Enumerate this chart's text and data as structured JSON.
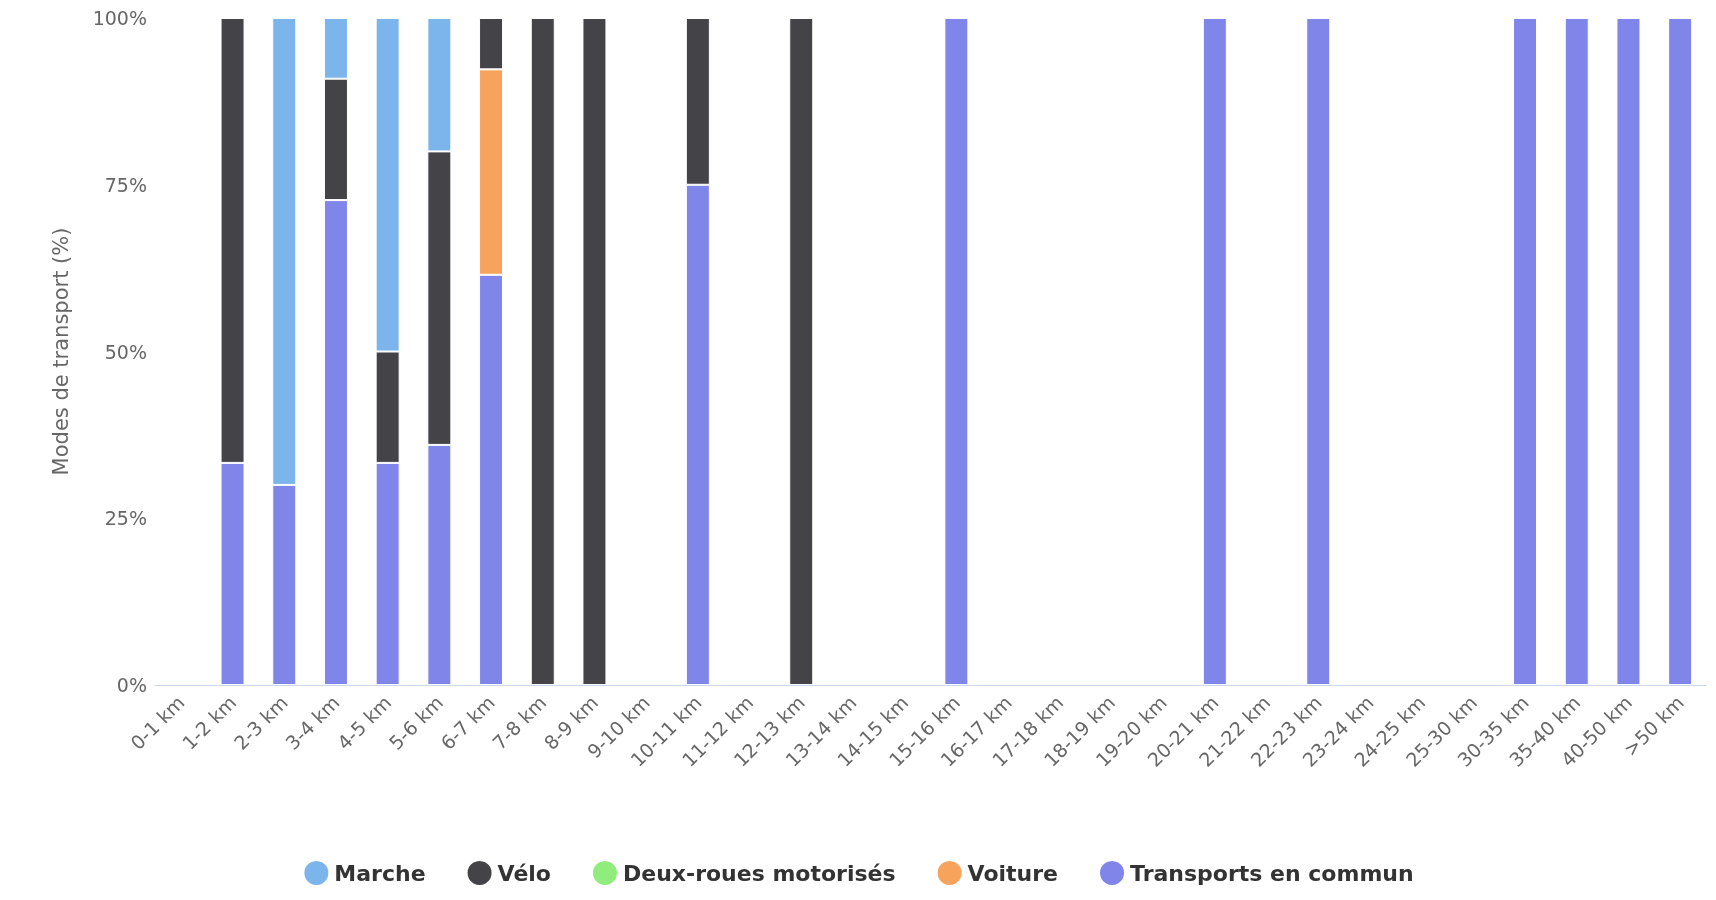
{
  "chart_data": {
    "type": "bar",
    "stacked": true,
    "ylabel": "Modes de transport (%)",
    "categories": [
      "0-1 km",
      "1-2 km",
      "2-3 km",
      "3-4 km",
      "4-5 km",
      "5-6 km",
      "6-7 km",
      "7-8 km",
      "8-9 km",
      "9-10 km",
      "10-11 km",
      "11-12 km",
      "12-13 km",
      "13-14 km",
      "14-15 km",
      "15-16 km",
      "16-17 km",
      "17-18 km",
      "18-19 km",
      "19-20 km",
      "20-21 km",
      "21-22 km",
      "22-23 km",
      "23-24 km",
      "24-25 km",
      "25-30 km",
      "30-35 km",
      "35-40 km",
      "40-50 km",
      ">50 km"
    ],
    "series": [
      {
        "name": "Transports en commun",
        "color": "#8085e9",
        "values": [
          null,
          33.3,
          30,
          72.7,
          33.3,
          36,
          61.5,
          null,
          null,
          null,
          75,
          null,
          null,
          null,
          null,
          100,
          null,
          null,
          null,
          null,
          100,
          null,
          100,
          null,
          null,
          null,
          100,
          100,
          100,
          100
        ]
      },
      {
        "name": "Voiture",
        "color": "#f7a35c",
        "values": [
          null,
          null,
          null,
          null,
          null,
          null,
          30.8,
          null,
          null,
          null,
          null,
          null,
          null,
          null,
          null,
          null,
          null,
          null,
          null,
          null,
          null,
          null,
          null,
          null,
          null,
          null,
          null,
          null,
          null,
          null
        ]
      },
      {
        "name": "Deux-roues motorisés",
        "color": "#90ed7d",
        "values": [
          null,
          null,
          null,
          null,
          null,
          null,
          null,
          null,
          null,
          null,
          null,
          null,
          null,
          null,
          null,
          null,
          null,
          null,
          null,
          null,
          null,
          null,
          null,
          null,
          null,
          null,
          null,
          null,
          null,
          null
        ]
      },
      {
        "name": "Vélo",
        "color": "#434348",
        "values": [
          null,
          66.7,
          null,
          18.2,
          16.7,
          44,
          7.7,
          100,
          100,
          null,
          25,
          null,
          100,
          null,
          null,
          null,
          null,
          null,
          null,
          null,
          null,
          null,
          null,
          null,
          null,
          null,
          null,
          null,
          null,
          null
        ]
      },
      {
        "name": "Marche",
        "color": "#7cb5ec",
        "values": [
          null,
          null,
          70,
          9.1,
          50,
          20,
          null,
          null,
          null,
          null,
          null,
          null,
          null,
          null,
          null,
          null,
          null,
          null,
          null,
          null,
          null,
          null,
          null,
          null,
          null,
          null,
          null,
          null,
          null,
          null
        ]
      }
    ],
    "ylim": [
      0,
      100
    ],
    "yticks": [
      {
        "value": 0,
        "label": "0%"
      },
      {
        "value": 25,
        "label": "25%"
      },
      {
        "value": 50,
        "label": "50%"
      },
      {
        "value": 75,
        "label": "75%"
      },
      {
        "value": 100,
        "label": "100%"
      }
    ],
    "grid": false,
    "legend": "bottom"
  }
}
